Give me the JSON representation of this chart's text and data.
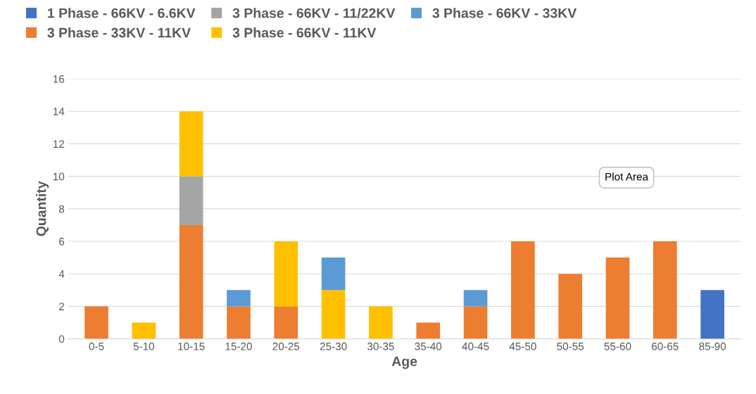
{
  "chart_data": {
    "type": "bar",
    "stacked": true,
    "xlabel": "Age",
    "ylabel": "Quantity",
    "categories": [
      "0-5",
      "5-10",
      "10-15",
      "15-20",
      "20-25",
      "25-30",
      "30-35",
      "35-40",
      "40-45",
      "45-50",
      "50-55",
      "55-60",
      "60-65",
      "85-90"
    ],
    "series": [
      {
        "name": "1 Phase - 66KV - 6.6KV",
        "color": "#4472c4",
        "values": [
          null,
          null,
          null,
          null,
          null,
          null,
          null,
          null,
          null,
          null,
          null,
          null,
          null,
          3
        ]
      },
      {
        "name": "3 Phase - 33KV - 11KV",
        "color": "#ed7d31",
        "values": [
          2,
          null,
          7,
          2,
          2,
          null,
          null,
          1,
          2,
          6,
          4,
          5,
          6,
          null
        ]
      },
      {
        "name": "3 Phase - 66KV - 11/22KV",
        "color": "#a5a5a5",
        "values": [
          null,
          null,
          3,
          null,
          null,
          null,
          null,
          null,
          null,
          null,
          null,
          null,
          null,
          null
        ]
      },
      {
        "name": "3 Phase - 66KV - 11KV",
        "color": "#ffc000",
        "values": [
          null,
          1,
          4,
          null,
          4,
          3,
          2,
          null,
          null,
          null,
          null,
          null,
          null,
          null
        ]
      },
      {
        "name": "3 Phase - 66KV - 33KV",
        "color": "#5b9bd5",
        "values": [
          null,
          null,
          null,
          1,
          null,
          2,
          null,
          null,
          1,
          null,
          null,
          null,
          null,
          null
        ]
      }
    ],
    "ylim": [
      0,
      16
    ],
    "yticks": [
      0,
      2,
      4,
      6,
      8,
      10,
      12,
      14,
      16
    ],
    "grid": "y",
    "legend": "top",
    "annotations": [
      "Plot Area"
    ]
  }
}
